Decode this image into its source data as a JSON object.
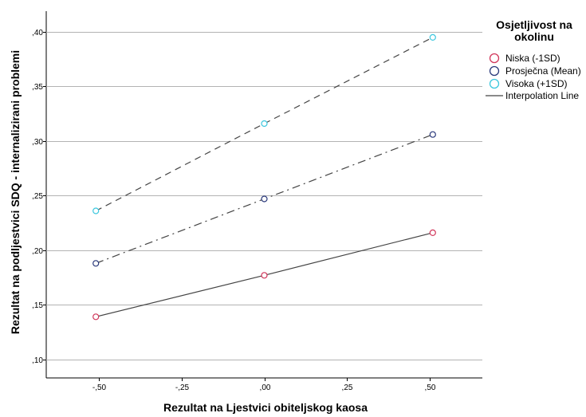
{
  "chart_data": {
    "type": "line",
    "xlabel": "Rezultat na Ljestvici obiteljskog kaosa",
    "ylabel": "Rezultat na podljestvici SDQ - internalizirani problemi",
    "x_ticks": [
      {
        "value": -0.5,
        "label": "-,50"
      },
      {
        "value": -0.25,
        "label": "-,25"
      },
      {
        "value": 0.0,
        "label": ",00"
      },
      {
        "value": 0.25,
        "label": ",25"
      },
      {
        "value": 0.5,
        "label": ",50"
      }
    ],
    "y_ticks": [
      {
        "value": 0.1,
        "label": ",10"
      },
      {
        "value": 0.15,
        "label": ",15"
      },
      {
        "value": 0.2,
        "label": ",20"
      },
      {
        "value": 0.25,
        "label": ",25"
      },
      {
        "value": 0.3,
        "label": ",30"
      },
      {
        "value": 0.35,
        "label": ",35"
      },
      {
        "value": 0.4,
        "label": ",40"
      }
    ],
    "xlim": [
      -0.66,
      0.66
    ],
    "ylim": [
      0.083,
      0.419
    ],
    "grid": "horizontal",
    "legend_position": "right",
    "legend_title": "Osjetljivost na okolinu",
    "legend_title_lines": [
      "Osjetljivost na",
      "okolinu"
    ],
    "series": [
      {
        "name": "Niska (-1SD)",
        "color": "#d1375b",
        "line_style": "solid",
        "x": [
          -0.51,
          0.0,
          0.51
        ],
        "y": [
          0.139,
          0.177,
          0.216
        ]
      },
      {
        "name": "Prosječna (Mean)",
        "color": "#2b3a7c",
        "line_style": "dashdot",
        "x": [
          -0.51,
          0.0,
          0.51
        ],
        "y": [
          0.188,
          0.247,
          0.306
        ]
      },
      {
        "name": "Visoka (+1SD)",
        "color": "#3cc7de",
        "line_style": "dashed",
        "x": [
          -0.51,
          0.0,
          0.51
        ],
        "y": [
          0.236,
          0.316,
          0.395
        ]
      }
    ],
    "interpolation_label": "Interpolation Line",
    "interpolation_color": "#444444"
  }
}
